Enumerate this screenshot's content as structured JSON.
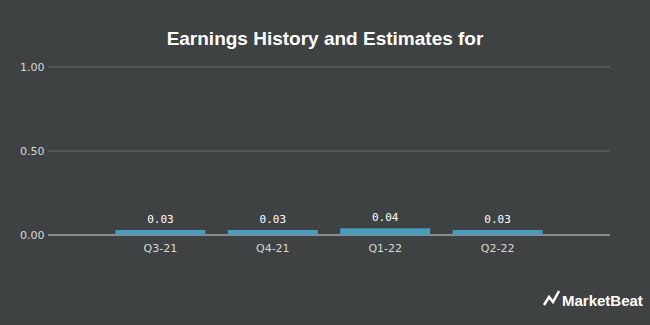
{
  "chart_data": {
    "type": "bar",
    "title": "Earnings History and Estimates for",
    "categories": [
      "Q3-21",
      "Q4-21",
      "Q1-22",
      "Q2-22"
    ],
    "values": [
      0.03,
      0.03,
      0.04,
      0.03
    ],
    "value_labels": [
      "0.03",
      "0.03",
      "0.04",
      "0.03"
    ],
    "data_labels": true,
    "color": "#4b9bbd",
    "ylim": [
      0,
      1
    ],
    "yticks": [
      {
        "value": 0,
        "label": "0.00"
      },
      {
        "value": 0.5,
        "label": "0.50"
      },
      {
        "value": 1,
        "label": "1.00"
      }
    ],
    "grid": true,
    "annotations": [
      "MarketBeat"
    ]
  }
}
